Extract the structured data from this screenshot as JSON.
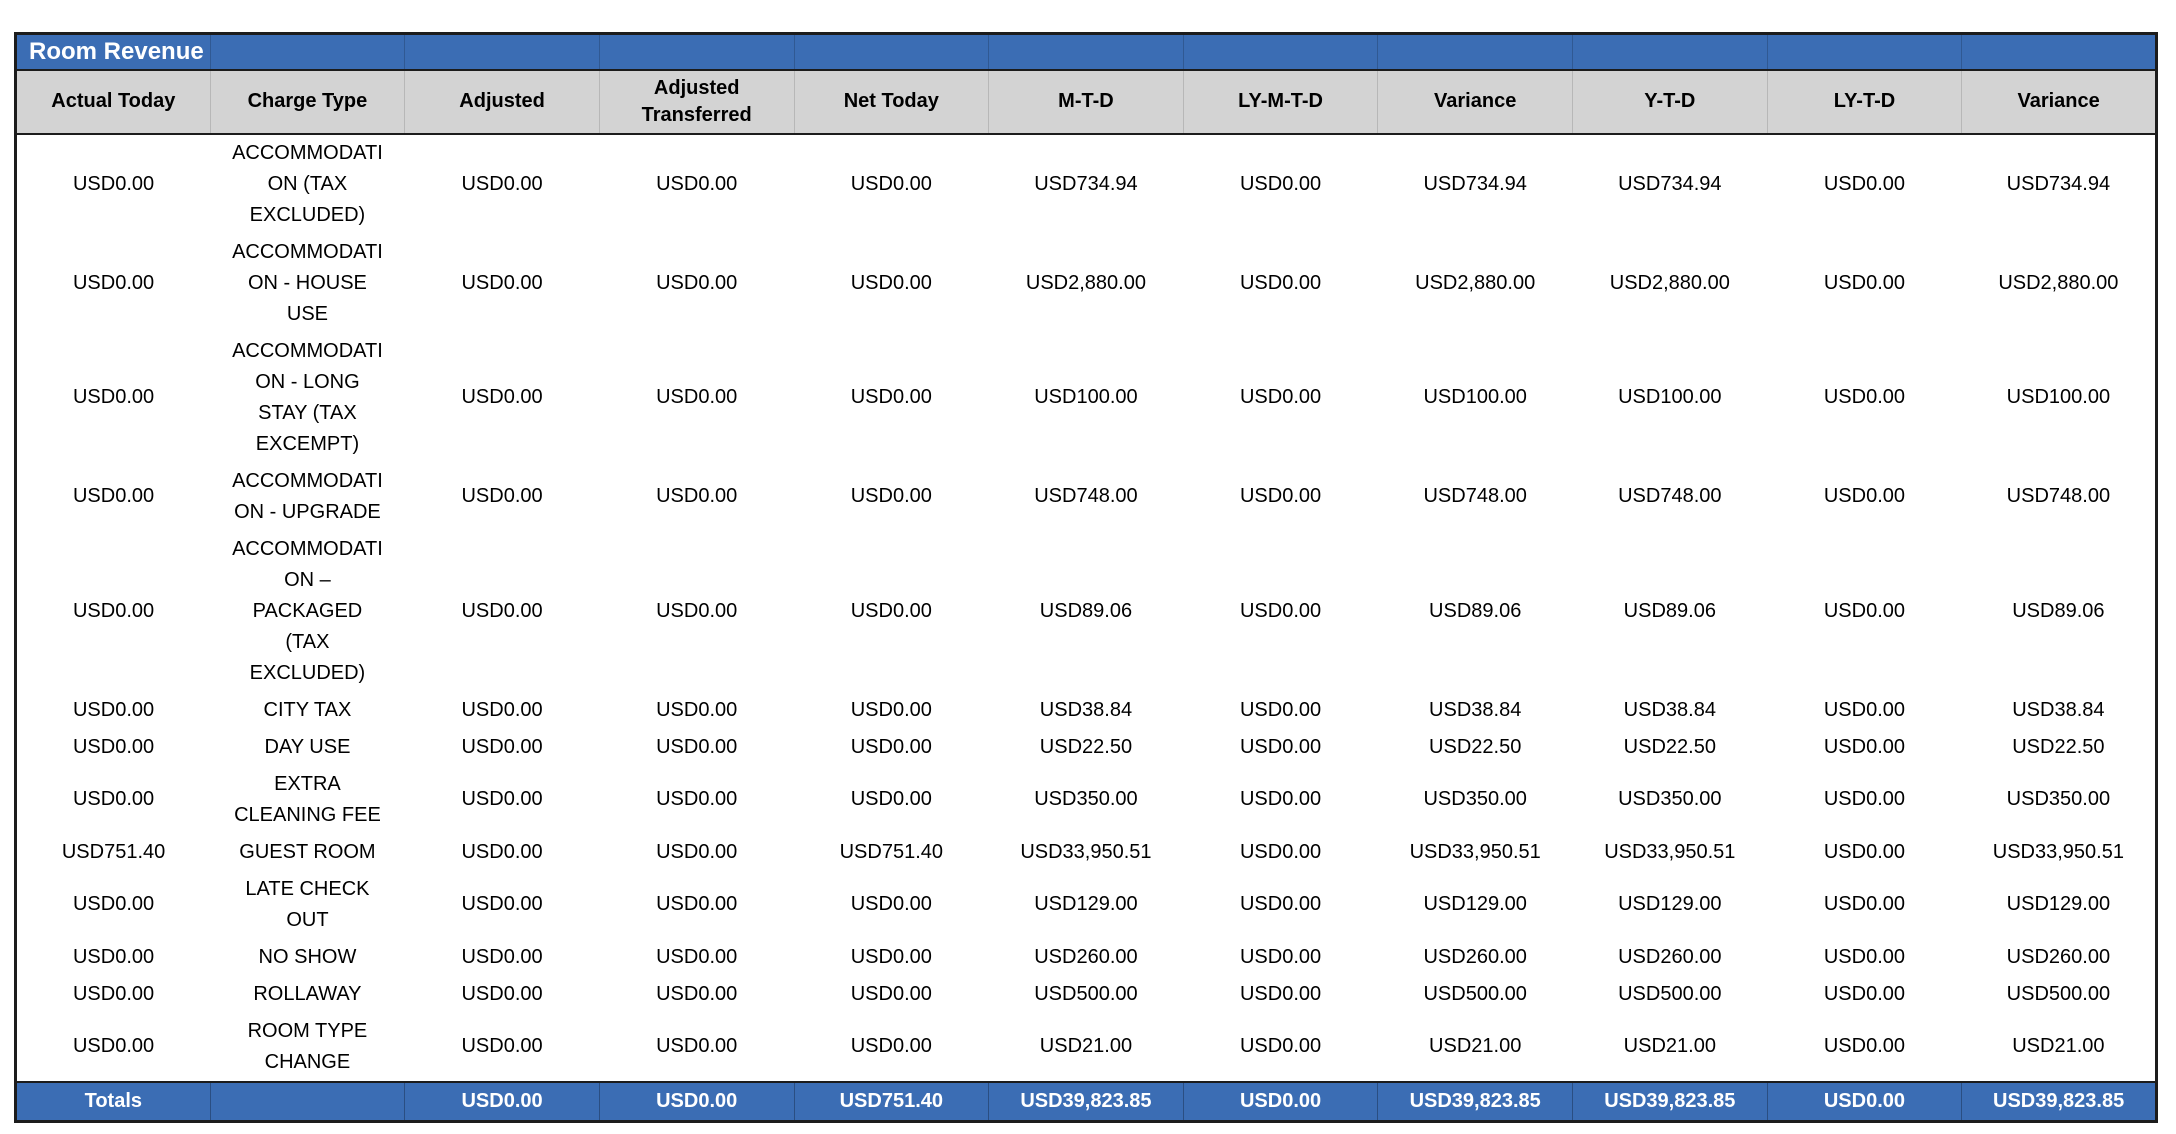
{
  "report": {
    "title": "Room Revenue"
  },
  "columns": [
    "Actual Today",
    "Charge Type",
    "Adjusted",
    "Adjusted Transferred",
    "Net Today",
    "M-T-D",
    "LY-M-T-D",
    "Variance",
    "Y-T-D",
    "LY-T-D",
    "Variance"
  ],
  "rows": [
    [
      "USD0.00",
      "ACCOMMODATION (TAX EXCLUDED)",
      "USD0.00",
      "USD0.00",
      "USD0.00",
      "USD734.94",
      "USD0.00",
      "USD734.94",
      "USD734.94",
      "USD0.00",
      "USD734.94"
    ],
    [
      "USD0.00",
      "ACCOMMODATION - HOUSE USE",
      "USD0.00",
      "USD0.00",
      "USD0.00",
      "USD2,880.00",
      "USD0.00",
      "USD2,880.00",
      "USD2,880.00",
      "USD0.00",
      "USD2,880.00"
    ],
    [
      "USD0.00",
      "ACCOMMODATION - LONG STAY (TAX EXCEMPT)",
      "USD0.00",
      "USD0.00",
      "USD0.00",
      "USD100.00",
      "USD0.00",
      "USD100.00",
      "USD100.00",
      "USD0.00",
      "USD100.00"
    ],
    [
      "USD0.00",
      "ACCOMMODATION - UPGRADE",
      "USD0.00",
      "USD0.00",
      "USD0.00",
      "USD748.00",
      "USD0.00",
      "USD748.00",
      "USD748.00",
      "USD0.00",
      "USD748.00"
    ],
    [
      "USD0.00",
      "ACCOMMODATION – PACKAGED (TAX EXCLUDED)",
      "USD0.00",
      "USD0.00",
      "USD0.00",
      "USD89.06",
      "USD0.00",
      "USD89.06",
      "USD89.06",
      "USD0.00",
      "USD89.06"
    ],
    [
      "USD0.00",
      "CITY TAX",
      "USD0.00",
      "USD0.00",
      "USD0.00",
      "USD38.84",
      "USD0.00",
      "USD38.84",
      "USD38.84",
      "USD0.00",
      "USD38.84"
    ],
    [
      "USD0.00",
      "DAY USE",
      "USD0.00",
      "USD0.00",
      "USD0.00",
      "USD22.50",
      "USD0.00",
      "USD22.50",
      "USD22.50",
      "USD0.00",
      "USD22.50"
    ],
    [
      "USD0.00",
      "EXTRA CLEANING FEE",
      "USD0.00",
      "USD0.00",
      "USD0.00",
      "USD350.00",
      "USD0.00",
      "USD350.00",
      "USD350.00",
      "USD0.00",
      "USD350.00"
    ],
    [
      "USD751.40",
      "GUEST ROOM",
      "USD0.00",
      "USD0.00",
      "USD751.40",
      "USD33,950.51",
      "USD0.00",
      "USD33,950.51",
      "USD33,950.51",
      "USD0.00",
      "USD33,950.51"
    ],
    [
      "USD0.00",
      "LATE CHECK OUT",
      "USD0.00",
      "USD0.00",
      "USD0.00",
      "USD129.00",
      "USD0.00",
      "USD129.00",
      "USD129.00",
      "USD0.00",
      "USD129.00"
    ],
    [
      "USD0.00",
      "NO SHOW",
      "USD0.00",
      "USD0.00",
      "USD0.00",
      "USD260.00",
      "USD0.00",
      "USD260.00",
      "USD260.00",
      "USD0.00",
      "USD260.00"
    ],
    [
      "USD0.00",
      "ROLLAWAY",
      "USD0.00",
      "USD0.00",
      "USD0.00",
      "USD500.00",
      "USD0.00",
      "USD500.00",
      "USD500.00",
      "USD0.00",
      "USD500.00"
    ],
    [
      "USD0.00",
      "ROOM TYPE CHANGE",
      "USD0.00",
      "USD0.00",
      "USD0.00",
      "USD21.00",
      "USD0.00",
      "USD21.00",
      "USD21.00",
      "USD0.00",
      "USD21.00"
    ]
  ],
  "totals": [
    "Totals",
    "",
    "USD0.00",
    "USD0.00",
    "USD751.40",
    "USD39,823.85",
    "USD0.00",
    "USD39,823.85",
    "USD39,823.85",
    "USD0.00",
    "USD39,823.85"
  ],
  "colors": {
    "header_blue": "#3B6DB4",
    "header_gray": "#D3D3D3",
    "border_dark": "#1C1C1C",
    "title_text": "#FFFFFF",
    "body_text": "#000000"
  }
}
